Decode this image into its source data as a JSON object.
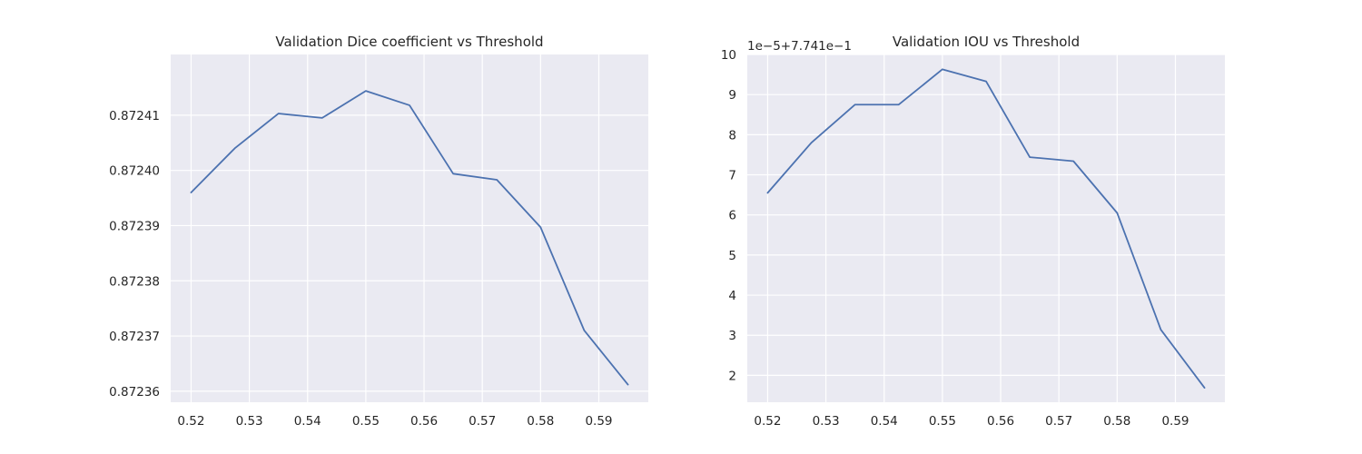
{
  "chart_data": [
    {
      "type": "line",
      "title": "Validation Dice coefficient vs Threshold",
      "xlabel": "",
      "ylabel": "",
      "grid": true,
      "xlim": [
        0.5165,
        0.5985
      ],
      "ylim": [
        0.872358,
        0.872421
      ],
      "xticks": [
        0.52,
        0.53,
        0.54,
        0.55,
        0.56,
        0.57,
        0.58,
        0.59
      ],
      "xtick_labels": [
        "0.52",
        "0.53",
        "0.54",
        "0.55",
        "0.56",
        "0.57",
        "0.58",
        "0.59"
      ],
      "yticks": [
        0.87236,
        0.87237,
        0.87238,
        0.87239,
        0.8724,
        0.87241
      ],
      "ytick_labels": [
        "0.87236",
        "0.87237",
        "0.87238",
        "0.87239",
        "0.87240",
        "0.87241"
      ],
      "offset_label": "",
      "series": [
        {
          "color": "#4c72b0",
          "x": [
            0.52,
            0.5275,
            0.535,
            0.5425,
            0.55,
            0.5575,
            0.565,
            0.5725,
            0.58,
            0.5875,
            0.595
          ],
          "y": [
            0.872396,
            0.872404,
            0.8724103,
            0.8724095,
            0.8724144,
            0.8724118,
            0.8723994,
            0.8723983,
            0.8723897,
            0.872371,
            0.8723612
          ]
        }
      ]
    },
    {
      "type": "line",
      "title": "Validation IOU vs Threshold",
      "xlabel": "",
      "ylabel": "",
      "grid": true,
      "xlim": [
        0.5165,
        0.5985
      ],
      "ylim": [
        1.33,
        10.0
      ],
      "xticks": [
        0.52,
        0.53,
        0.54,
        0.55,
        0.56,
        0.57,
        0.58,
        0.59
      ],
      "xtick_labels": [
        "0.52",
        "0.53",
        "0.54",
        "0.55",
        "0.56",
        "0.57",
        "0.58",
        "0.59"
      ],
      "yticks": [
        2,
        3,
        4,
        5,
        6,
        7,
        8,
        9,
        10
      ],
      "ytick_labels": [
        "2",
        "3",
        "4",
        "5",
        "6",
        "7",
        "8",
        "9",
        "10"
      ],
      "offset_label": "1e−5+7.741e−1",
      "series": [
        {
          "color": "#4c72b0",
          "x": [
            0.52,
            0.5275,
            0.535,
            0.5425,
            0.55,
            0.5575,
            0.565,
            0.5725,
            0.58,
            0.5875,
            0.595
          ],
          "y": [
            6.55,
            7.8,
            8.75,
            8.75,
            9.63,
            9.33,
            7.44,
            7.34,
            6.05,
            3.14,
            1.69
          ]
        }
      ]
    }
  ]
}
